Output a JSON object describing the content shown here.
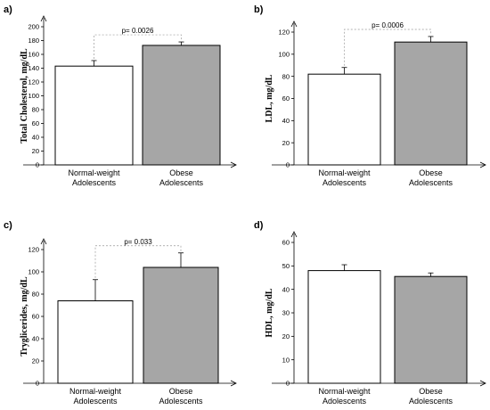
{
  "colors": {
    "normal": "#ffffff",
    "obese": "#a6a6a6",
    "axis": "#000000",
    "bracket": "#999999"
  },
  "chart_data": [
    {
      "type": "bar",
      "panel": "a)",
      "ylabel": "Total Cholesterol, mg/dL",
      "ylim": [
        0,
        200
      ],
      "yticks": [
        0,
        20,
        40,
        60,
        80,
        100,
        120,
        140,
        160,
        180,
        200
      ],
      "categories": [
        [
          "Normal-weight",
          "Adolescents"
        ],
        [
          "Obese",
          "Adolescents"
        ]
      ],
      "values": [
        143,
        173
      ],
      "errors": [
        8,
        5
      ],
      "p_value": "p= 0.0026"
    },
    {
      "type": "bar",
      "panel": "b)",
      "ylabel": "LDL, mg/dL",
      "ylim": [
        0,
        120
      ],
      "yticks": [
        0,
        20,
        40,
        60,
        80,
        100,
        120
      ],
      "categories": [
        [
          "Normal-weight",
          "Adolescents"
        ],
        [
          "Obese",
          "Adolescents"
        ]
      ],
      "values": [
        82,
        111
      ],
      "errors": [
        6,
        5
      ],
      "p_value": "p= 0.0006"
    },
    {
      "type": "bar",
      "panel": "c)",
      "ylabel": "Tryglicerides, mg/dL",
      "ylim": [
        0,
        120
      ],
      "yticks": [
        0,
        20,
        40,
        60,
        80,
        100,
        120
      ],
      "categories": [
        [
          "Normal-weight",
          "Adolescents"
        ],
        [
          "Obese",
          "Adolescents"
        ]
      ],
      "values": [
        74,
        104
      ],
      "errors": [
        19,
        13
      ],
      "p_value": "p= 0.033"
    },
    {
      "type": "bar",
      "panel": "d)",
      "ylabel": "HDL, mg/dL",
      "ylim": [
        0,
        60
      ],
      "yticks": [
        0,
        10,
        20,
        30,
        40,
        50,
        60
      ],
      "categories": [
        [
          "Normal-weight",
          "Adolescents"
        ],
        [
          "Obese",
          "Adolescents"
        ]
      ],
      "values": [
        48,
        45.5
      ],
      "errors": [
        2.5,
        1.5
      ],
      "p_value": ""
    }
  ]
}
